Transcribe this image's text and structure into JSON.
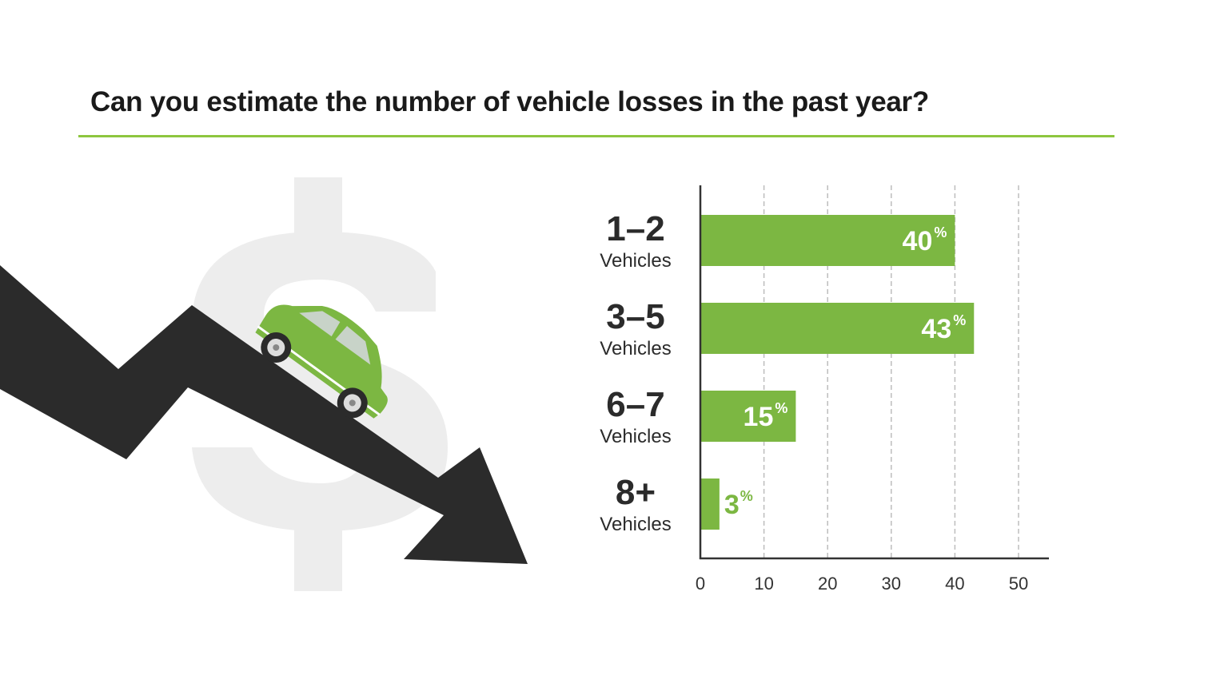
{
  "title": "Can you estimate the number of vehicle losses in the past year?",
  "colors": {
    "accent": "#7cb742",
    "rule": "#8dc63f",
    "arrow": "#2b2b2b",
    "dollar": "#ededed",
    "axis": "#333333",
    "grid": "#bdbdbd"
  },
  "illustration": {
    "icons": [
      "dollar-sign-icon",
      "down-trend-arrow-icon",
      "green-car-icon"
    ]
  },
  "chart_data": {
    "type": "bar",
    "orientation": "horizontal",
    "categories": [
      {
        "top": "1–2",
        "bottom": "Vehicles"
      },
      {
        "top": "3–5",
        "bottom": "Vehicles"
      },
      {
        "top": "6–7",
        "bottom": "Vehicles"
      },
      {
        "top": "8+",
        "bottom": "Vehicles"
      }
    ],
    "values": [
      40,
      43,
      15,
      3
    ],
    "labels": [
      "40",
      "43",
      "15",
      "3"
    ],
    "unit_suffix": "%",
    "xlim": [
      0,
      50
    ],
    "xticks": [
      "0",
      "10",
      "20",
      "30",
      "40",
      "50"
    ],
    "grid": "vertical dashed",
    "title": "",
    "xlabel": "",
    "ylabel": ""
  }
}
